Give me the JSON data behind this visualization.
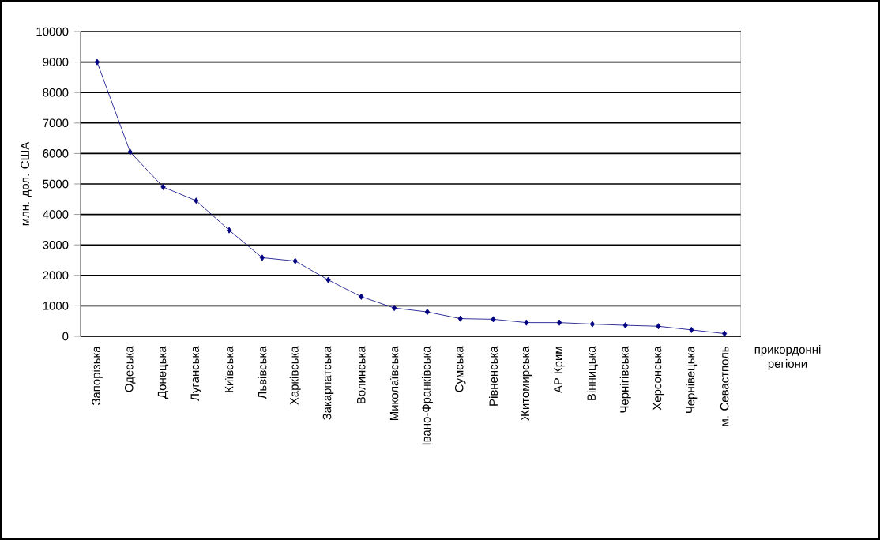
{
  "chart_data": {
    "type": "line",
    "ylabel": "млн. дол. США",
    "xlabel": "прикордонні регіони",
    "categories": [
      "Запорізька",
      "Одеська",
      "Донецька",
      "Луганська",
      "Київська",
      "Львівська",
      "Харківська",
      "Закарпатська",
      "Волинська",
      "Миколаївська",
      "Івано-Франківська",
      "Сумська",
      "Рівненська",
      "Житомирська",
      "АР Крим",
      "Вінницька",
      "Чернігівська",
      "Херсонська",
      "Чернівецька",
      "м. Севастполь"
    ],
    "series": [
      {
        "color": "#000080",
        "values": [
          9000,
          6050,
          4900,
          4450,
          3480,
          2580,
          2470,
          1850,
          1300,
          930,
          800,
          580,
          560,
          450,
          450,
          400,
          360,
          330,
          210,
          90
        ]
      }
    ],
    "ylim": [
      0,
      10000
    ],
    "yticks": [
      0,
      1000,
      2000,
      3000,
      4000,
      5000,
      6000,
      7000,
      8000,
      9000,
      10000
    ],
    "grid": "y",
    "marker": "diamond",
    "line_style": "solid"
  }
}
